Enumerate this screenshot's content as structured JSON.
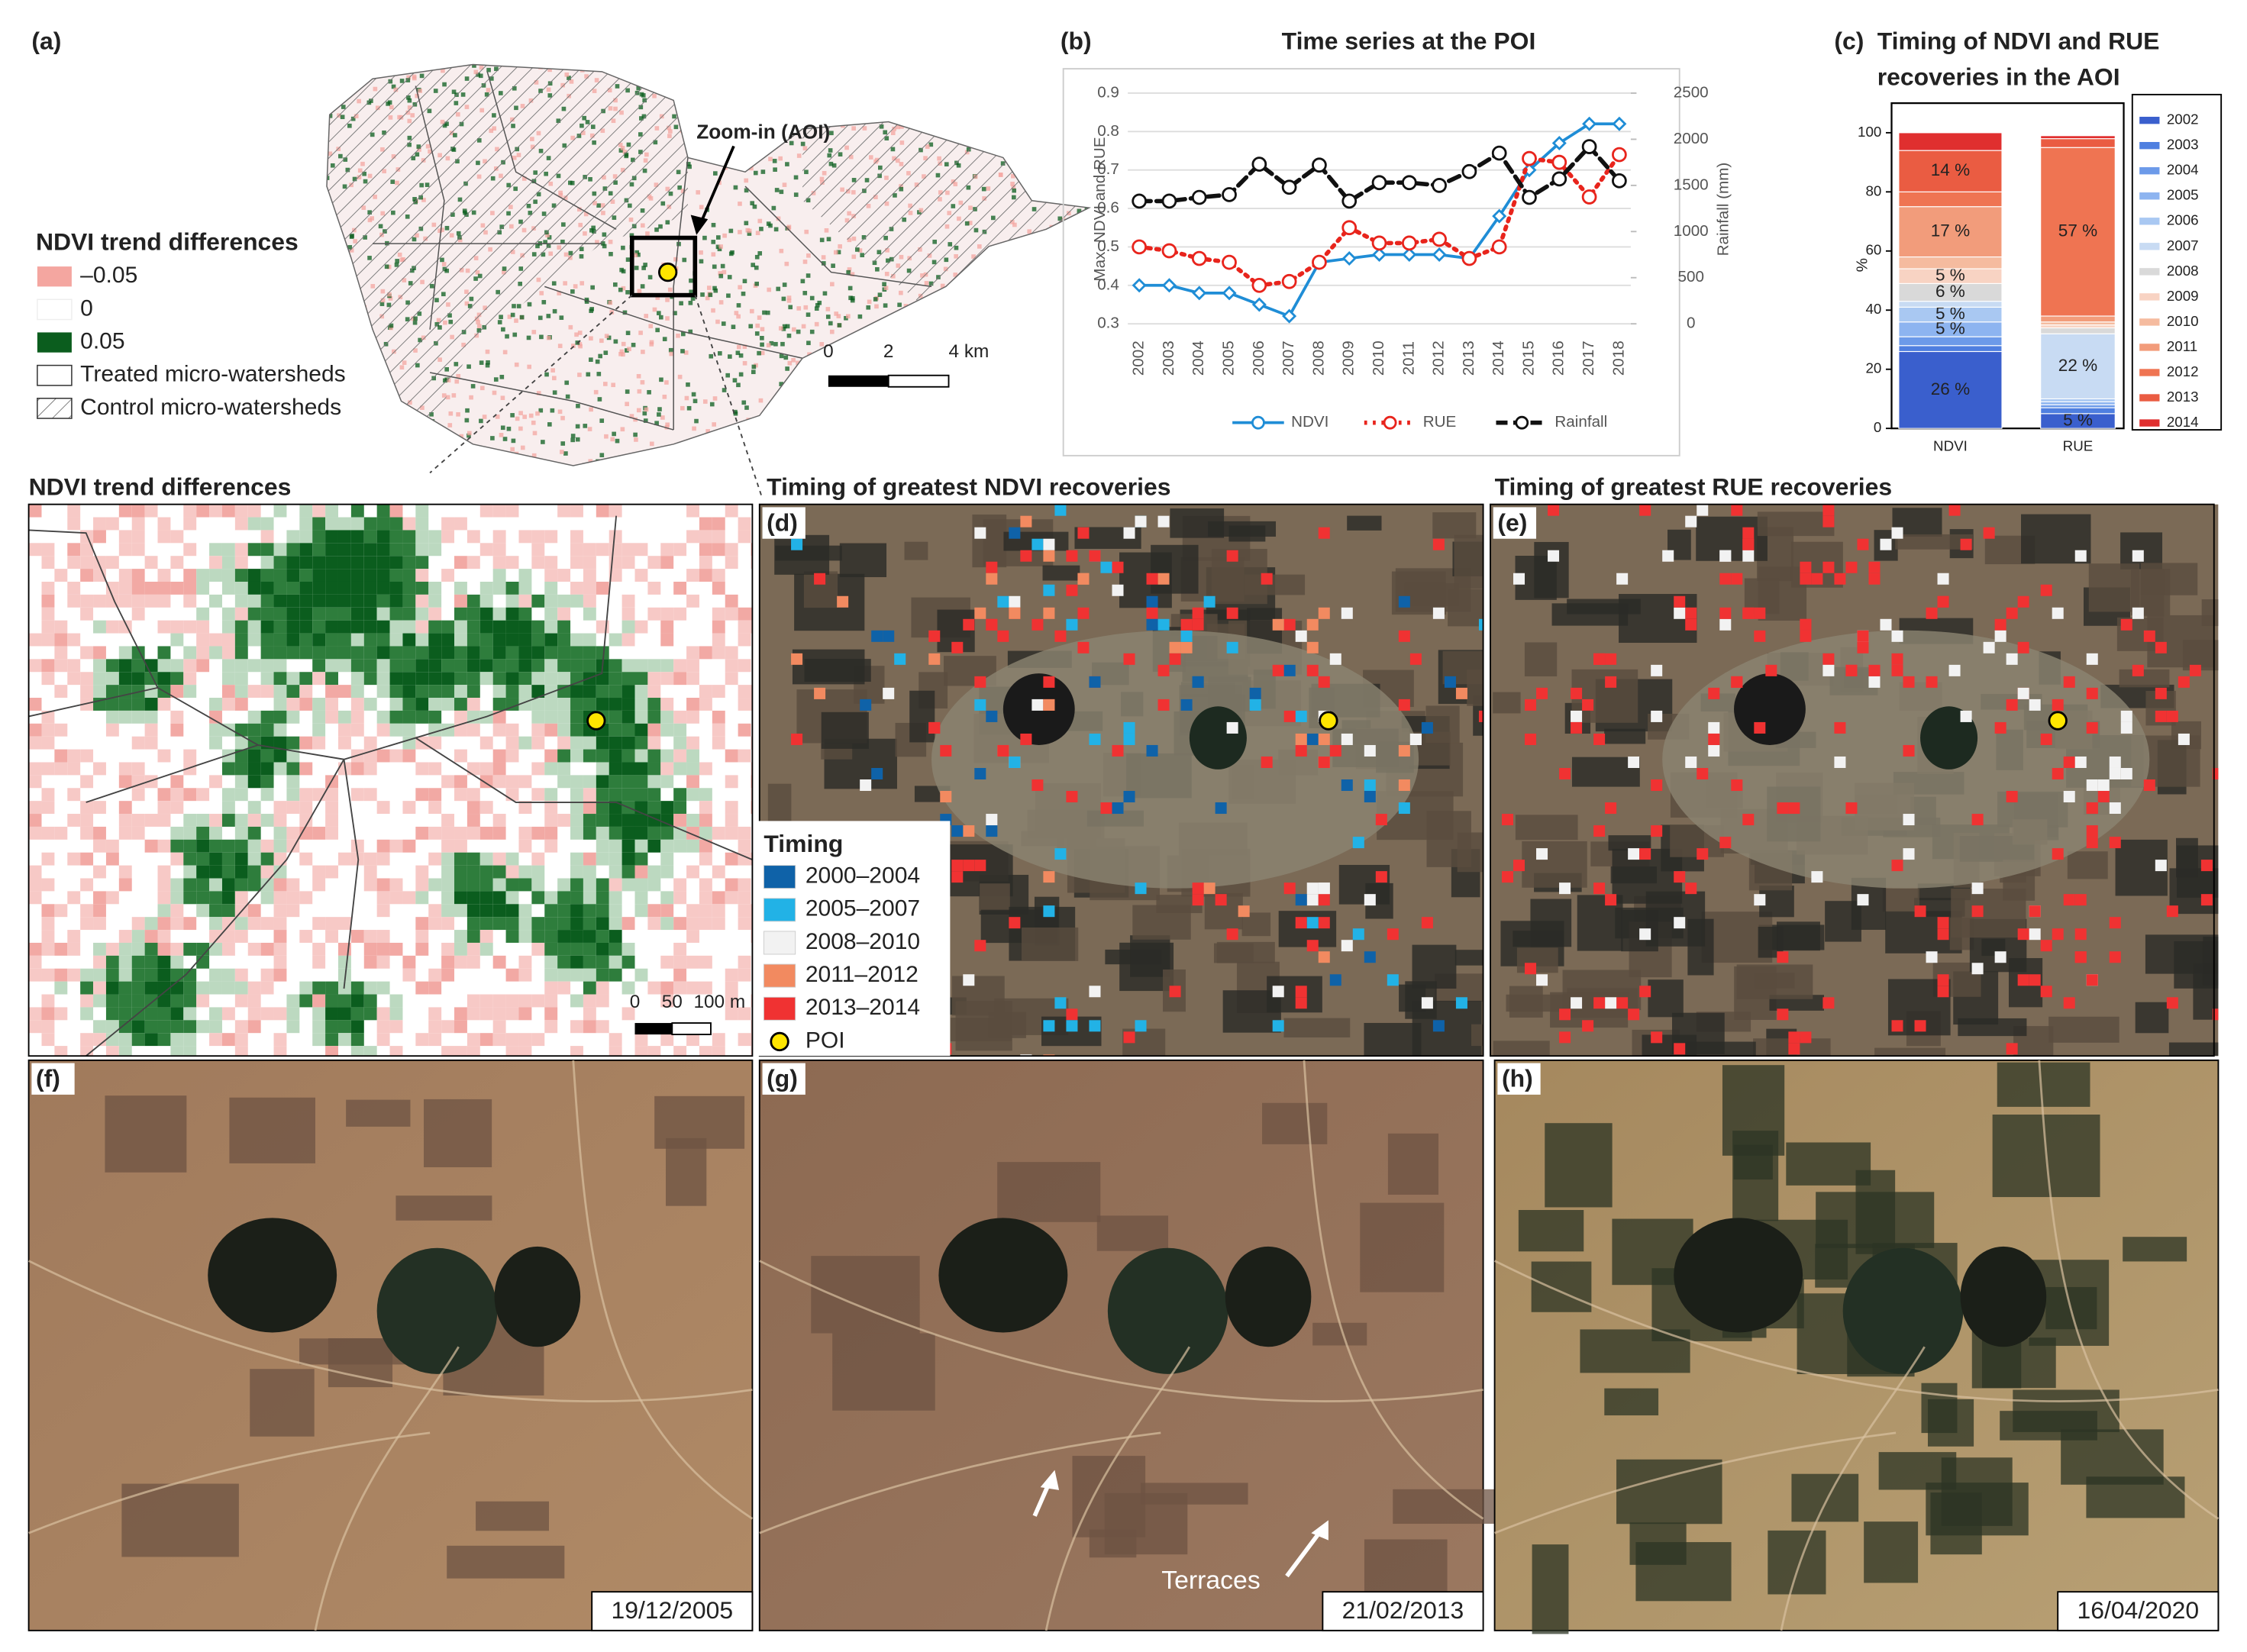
{
  "panel_a": {
    "label": "(a)",
    "callout": "Zoom-in (AOI)",
    "legend_title": "NDVI trend differences",
    "legend": [
      "–0.05",
      "0",
      "0.05",
      "Treated micro-watersheds",
      "Control micro-watersheds"
    ],
    "legend_colors": [
      "#f4a6a0",
      "#ffffff",
      "#0b5d1e"
    ],
    "scale": [
      "0",
      "2",
      "4 km"
    ]
  },
  "chart_data": [
    {
      "type": "line",
      "label": "(b)",
      "title": "Time series at the POI",
      "ylabel": "Max. NDVI and RUE",
      "y2label": "Rainfall (mm)",
      "categories": [
        "2002",
        "2003",
        "2004",
        "2005",
        "2006",
        "2007",
        "2008",
        "2009",
        "2010",
        "2011",
        "2012",
        "2013",
        "2014",
        "2015",
        "2016",
        "2017",
        "2018"
      ],
      "ylim": [
        0.3,
        0.9
      ],
      "yticks": [
        0.3,
        0.4,
        0.5,
        0.6,
        0.7,
        0.8,
        0.9
      ],
      "y2lim": [
        0,
        2500
      ],
      "y2ticks": [
        0,
        500,
        1000,
        1500,
        2000,
        2500
      ],
      "grid": true,
      "legend": "bottom",
      "series": [
        {
          "name": "NDVI",
          "color": "#1f8dd6",
          "style": "solid",
          "marker": "diamond",
          "values": [
            0.4,
            0.4,
            0.38,
            0.38,
            0.35,
            0.32,
            0.46,
            0.47,
            0.48,
            0.48,
            0.48,
            0.47,
            0.58,
            0.7,
            0.77,
            0.82,
            0.82
          ]
        },
        {
          "name": "RUE",
          "color": "#e8241c",
          "style": "dotted",
          "marker": "circle",
          "values": [
            0.5,
            0.49,
            0.47,
            0.46,
            0.4,
            0.41,
            0.46,
            0.55,
            0.51,
            0.51,
            0.52,
            0.47,
            0.5,
            0.73,
            0.72,
            0.63,
            0.74
          ]
        },
        {
          "name": "Rainfall",
          "color": "#111111",
          "style": "dashed",
          "marker": "circle",
          "axis": "y2",
          "values": [
            1330,
            1330,
            1370,
            1400,
            1730,
            1480,
            1720,
            1330,
            1530,
            1530,
            1500,
            1650,
            1850,
            1370,
            1570,
            1920,
            1550
          ]
        }
      ]
    },
    {
      "type": "stacked_bar",
      "label": "(c)",
      "title": [
        "Timing of NDVI and RUE",
        "recoveries in the AOI"
      ],
      "ylabel": "%",
      "categories": [
        "NDVI",
        "RUE"
      ],
      "ylim": [
        0,
        110
      ],
      "yticks": [
        0,
        20,
        40,
        60,
        80,
        100
      ],
      "legend": "right",
      "series": [
        {
          "name": "2002",
          "color": "#3a5fcd",
          "values": [
            26,
            5
          ],
          "value_labels": [
            "26 %",
            "5 %"
          ]
        },
        {
          "name": "2003",
          "color": "#4f7fe0",
          "values": [
            2,
            2
          ],
          "value_labels": [
            null,
            null
          ]
        },
        {
          "name": "2004",
          "color": "#6c9ae9",
          "values": [
            3,
            1
          ],
          "value_labels": [
            null,
            null
          ]
        },
        {
          "name": "2005",
          "color": "#8db4f0",
          "values": [
            5,
            1
          ],
          "value_labels": [
            "5 %",
            null
          ]
        },
        {
          "name": "2006",
          "color": "#a9c8f2",
          "values": [
            5,
            1
          ],
          "value_labels": [
            "5 %",
            null
          ]
        },
        {
          "name": "2007",
          "color": "#c8dbf3",
          "values": [
            2,
            22
          ],
          "value_labels": [
            null,
            "22 %"
          ]
        },
        {
          "name": "2008",
          "color": "#d9d9d9",
          "values": [
            6,
            2
          ],
          "value_labels": [
            "6 %",
            null
          ]
        },
        {
          "name": "2009",
          "color": "#f8d3c3",
          "values": [
            5,
            1
          ],
          "value_labels": [
            "5 %",
            null
          ]
        },
        {
          "name": "2010",
          "color": "#f5bb9f",
          "values": [
            4,
            1
          ],
          "value_labels": [
            null,
            null
          ]
        },
        {
          "name": "2011",
          "color": "#f29c7b",
          "values": [
            17,
            2
          ],
          "value_labels": [
            "17 %",
            null
          ]
        },
        {
          "name": "2012",
          "color": "#ef7452",
          "values": [
            5,
            57
          ],
          "value_labels": [
            null,
            "57 %"
          ]
        },
        {
          "name": "2013",
          "color": "#ea5c42",
          "values": [
            14,
            3
          ],
          "value_labels": [
            "14 %",
            null
          ]
        },
        {
          "name": "2014",
          "color": "#e02f2f",
          "values": [
            6,
            1
          ],
          "value_labels": [
            null,
            null
          ]
        }
      ]
    }
  ],
  "panel_ndvi": {
    "title": "NDVI trend differences",
    "scale": [
      "0",
      "50",
      "100 m"
    ]
  },
  "panel_d": {
    "label": "(d)",
    "title": "Timing of greatest NDVI recoveries",
    "legend_title": "Timing",
    "legend": [
      "2000–2004",
      "2005–2007",
      "2008–2010",
      "2011–2012",
      "2013–2014",
      "POI"
    ],
    "legend_colors": [
      "#0f62a8",
      "#22b2e6",
      "#f2f2f2",
      "#f28a60",
      "#f03232",
      "#ffe600"
    ]
  },
  "panel_e": {
    "label": "(e)",
    "title": "Timing of greatest RUE recoveries"
  },
  "photos": [
    {
      "label": "(f)",
      "date": "19/12/2005"
    },
    {
      "label": "(g)",
      "date": "21/02/2013",
      "annotation": "Terraces"
    },
    {
      "label": "(h)",
      "date": "16/04/2020"
    }
  ]
}
